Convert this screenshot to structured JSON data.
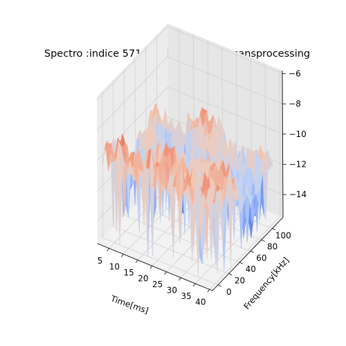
{
  "chart_data": {
    "type": "surface",
    "title": "Spectro :indice 571 label 9 classe ZC sansprocessing",
    "xlabel": "Time[ms]",
    "ylabel": "Frequency[kHz]",
    "zlabel": "",
    "xlim": [
      1,
      41
    ],
    "ylim": [
      -10,
      120
    ],
    "zlim": [
      -15.5,
      -5.8
    ],
    "x_ticks": [
      "5",
      "10",
      "15",
      "20",
      "25",
      "30",
      "35",
      "40"
    ],
    "y_ticks": [
      "0",
      "20",
      "40",
      "60",
      "80",
      "100"
    ],
    "z_ticks": [
      "-6",
      "-8",
      "-10",
      "-12",
      "-14"
    ],
    "colormap": "coolwarm",
    "grid": true,
    "time_range_ms": [
      1,
      40
    ],
    "frequency_range_khz": [
      0,
      110
    ],
    "value_range": [
      -15.5,
      -7.5
    ],
    "surface_features": {
      "high_band_frequency_khz": [
        0,
        20
      ],
      "high_band_value": -9.6,
      "low_floor_value": -11.8,
      "arc_peak_value": -9.2
    }
  }
}
